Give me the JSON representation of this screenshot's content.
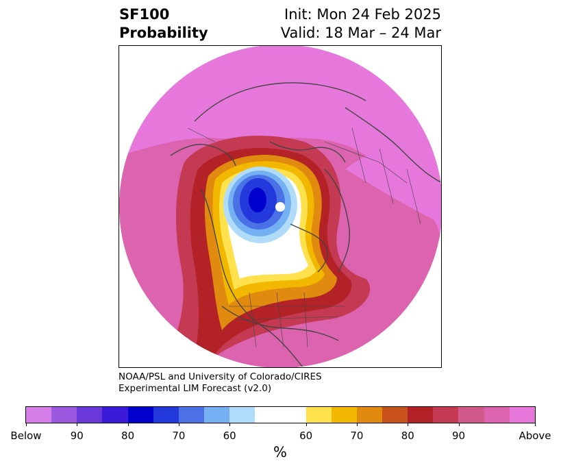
{
  "header": {
    "title_line1": "SF100",
    "title_line2": "Probability",
    "init": "Init: Mon 24 Feb 2025",
    "valid": "Valid: 18 Mar – 24 Mar"
  },
  "credit": {
    "line1": "NOAA/PSL and University of Colorado/CIRES",
    "line2": "Experimental LIM Forecast (v2.0)"
  },
  "colorbar": {
    "colors": [
      "#d67ee8",
      "#9b59e0",
      "#6a37d8",
      "#3a1ad6",
      "#0000cc",
      "#2339db",
      "#4a72e6",
      "#74b0f2",
      "#b0dcfa",
      "#ffffff",
      "#ffe14d",
      "#f2b800",
      "#e08a0f",
      "#c8521b",
      "#b22226",
      "#c33a52",
      "#d25a8a",
      "#dc63ad",
      "#e678dc"
    ],
    "tick_labels": [
      "Below",
      "90",
      "80",
      "70",
      "60",
      "60",
      "70",
      "80",
      "90",
      "Above"
    ],
    "unit": "%"
  },
  "map": {
    "colors": {
      "above": "#e678dc",
      "p90": "#dc63ad",
      "p80": "#c33a52",
      "p75": "#b22226",
      "p70": "#e08a0f",
      "p60": "#f2b800",
      "p55": "#ffe14d",
      "neutral": "#ffffff",
      "b60": "#b0dcfa",
      "b65": "#74b0f2",
      "b70": "#4a72e6",
      "b80": "#2339db",
      "b90": "#0000cc"
    }
  }
}
